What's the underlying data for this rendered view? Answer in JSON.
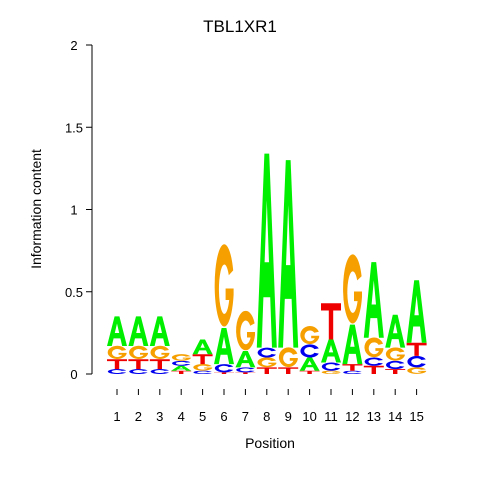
{
  "chart_data": {
    "type": "sequence-logo",
    "title": "TBL1XR1",
    "xlabel": "Position",
    "ylabel": "Information content",
    "ylim": [
      0,
      2
    ],
    "yticks": [
      0,
      0.5,
      1,
      1.5,
      2
    ],
    "ytick_labels": [
      "0",
      "0.5",
      "1",
      "1.5",
      "2"
    ],
    "positions": [
      "1",
      "2",
      "3",
      "4",
      "5",
      "6",
      "7",
      "8",
      "9",
      "10",
      "11",
      "12",
      "13",
      "14",
      "15"
    ],
    "colors": {
      "A": "#00ee00",
      "C": "#0000ee",
      "G": "#f5a000",
      "T": "#ee0000"
    },
    "stacks": [
      [
        [
          "C",
          0.03
        ],
        [
          "T",
          0.06
        ],
        [
          "G",
          0.08
        ],
        [
          "A",
          0.18
        ]
      ],
      [
        [
          "C",
          0.03
        ],
        [
          "T",
          0.06
        ],
        [
          "G",
          0.08
        ],
        [
          "A",
          0.18
        ]
      ],
      [
        [
          "C",
          0.03
        ],
        [
          "T",
          0.06
        ],
        [
          "G",
          0.08
        ],
        [
          "A",
          0.18
        ]
      ],
      [
        [
          "T",
          0.02
        ],
        [
          "A",
          0.03
        ],
        [
          "C",
          0.03
        ],
        [
          "G",
          0.04
        ]
      ],
      [
        [
          "C",
          0.02
        ],
        [
          "G",
          0.04
        ],
        [
          "T",
          0.06
        ],
        [
          "A",
          0.09
        ]
      ],
      [
        [
          "T",
          0.01
        ],
        [
          "C",
          0.05
        ],
        [
          "A",
          0.22
        ],
        [
          "G",
          0.5
        ]
      ],
      [
        [
          "T",
          0.01
        ],
        [
          "C",
          0.03
        ],
        [
          "A",
          0.1
        ],
        [
          "G",
          0.24
        ]
      ],
      [
        [
          "T",
          0.04
        ],
        [
          "G",
          0.06
        ],
        [
          "C",
          0.06
        ],
        [
          "A",
          1.18
        ]
      ],
      [
        [
          "T",
          0.04
        ],
        [
          "G",
          0.12
        ],
        [
          "A",
          1.14
        ]
      ],
      [
        [
          "T",
          0.02
        ],
        [
          "A",
          0.08
        ],
        [
          "C",
          0.08
        ],
        [
          "G",
          0.11
        ]
      ],
      [
        [
          "G",
          0.02
        ],
        [
          "C",
          0.05
        ],
        [
          "A",
          0.14
        ],
        [
          "T",
          0.22
        ]
      ],
      [
        [
          "C",
          0.02
        ],
        [
          "T",
          0.04
        ],
        [
          "A",
          0.24
        ],
        [
          "G",
          0.42
        ]
      ],
      [
        [
          "T",
          0.05
        ],
        [
          "C",
          0.05
        ],
        [
          "G",
          0.12
        ],
        [
          "A",
          0.46
        ]
      ],
      [
        [
          "T",
          0.03
        ],
        [
          "C",
          0.05
        ],
        [
          "G",
          0.08
        ],
        [
          "A",
          0.2
        ]
      ],
      [
        [
          "G",
          0.04
        ],
        [
          "C",
          0.07
        ],
        [
          "T",
          0.08
        ],
        [
          "A",
          0.38
        ]
      ]
    ]
  }
}
